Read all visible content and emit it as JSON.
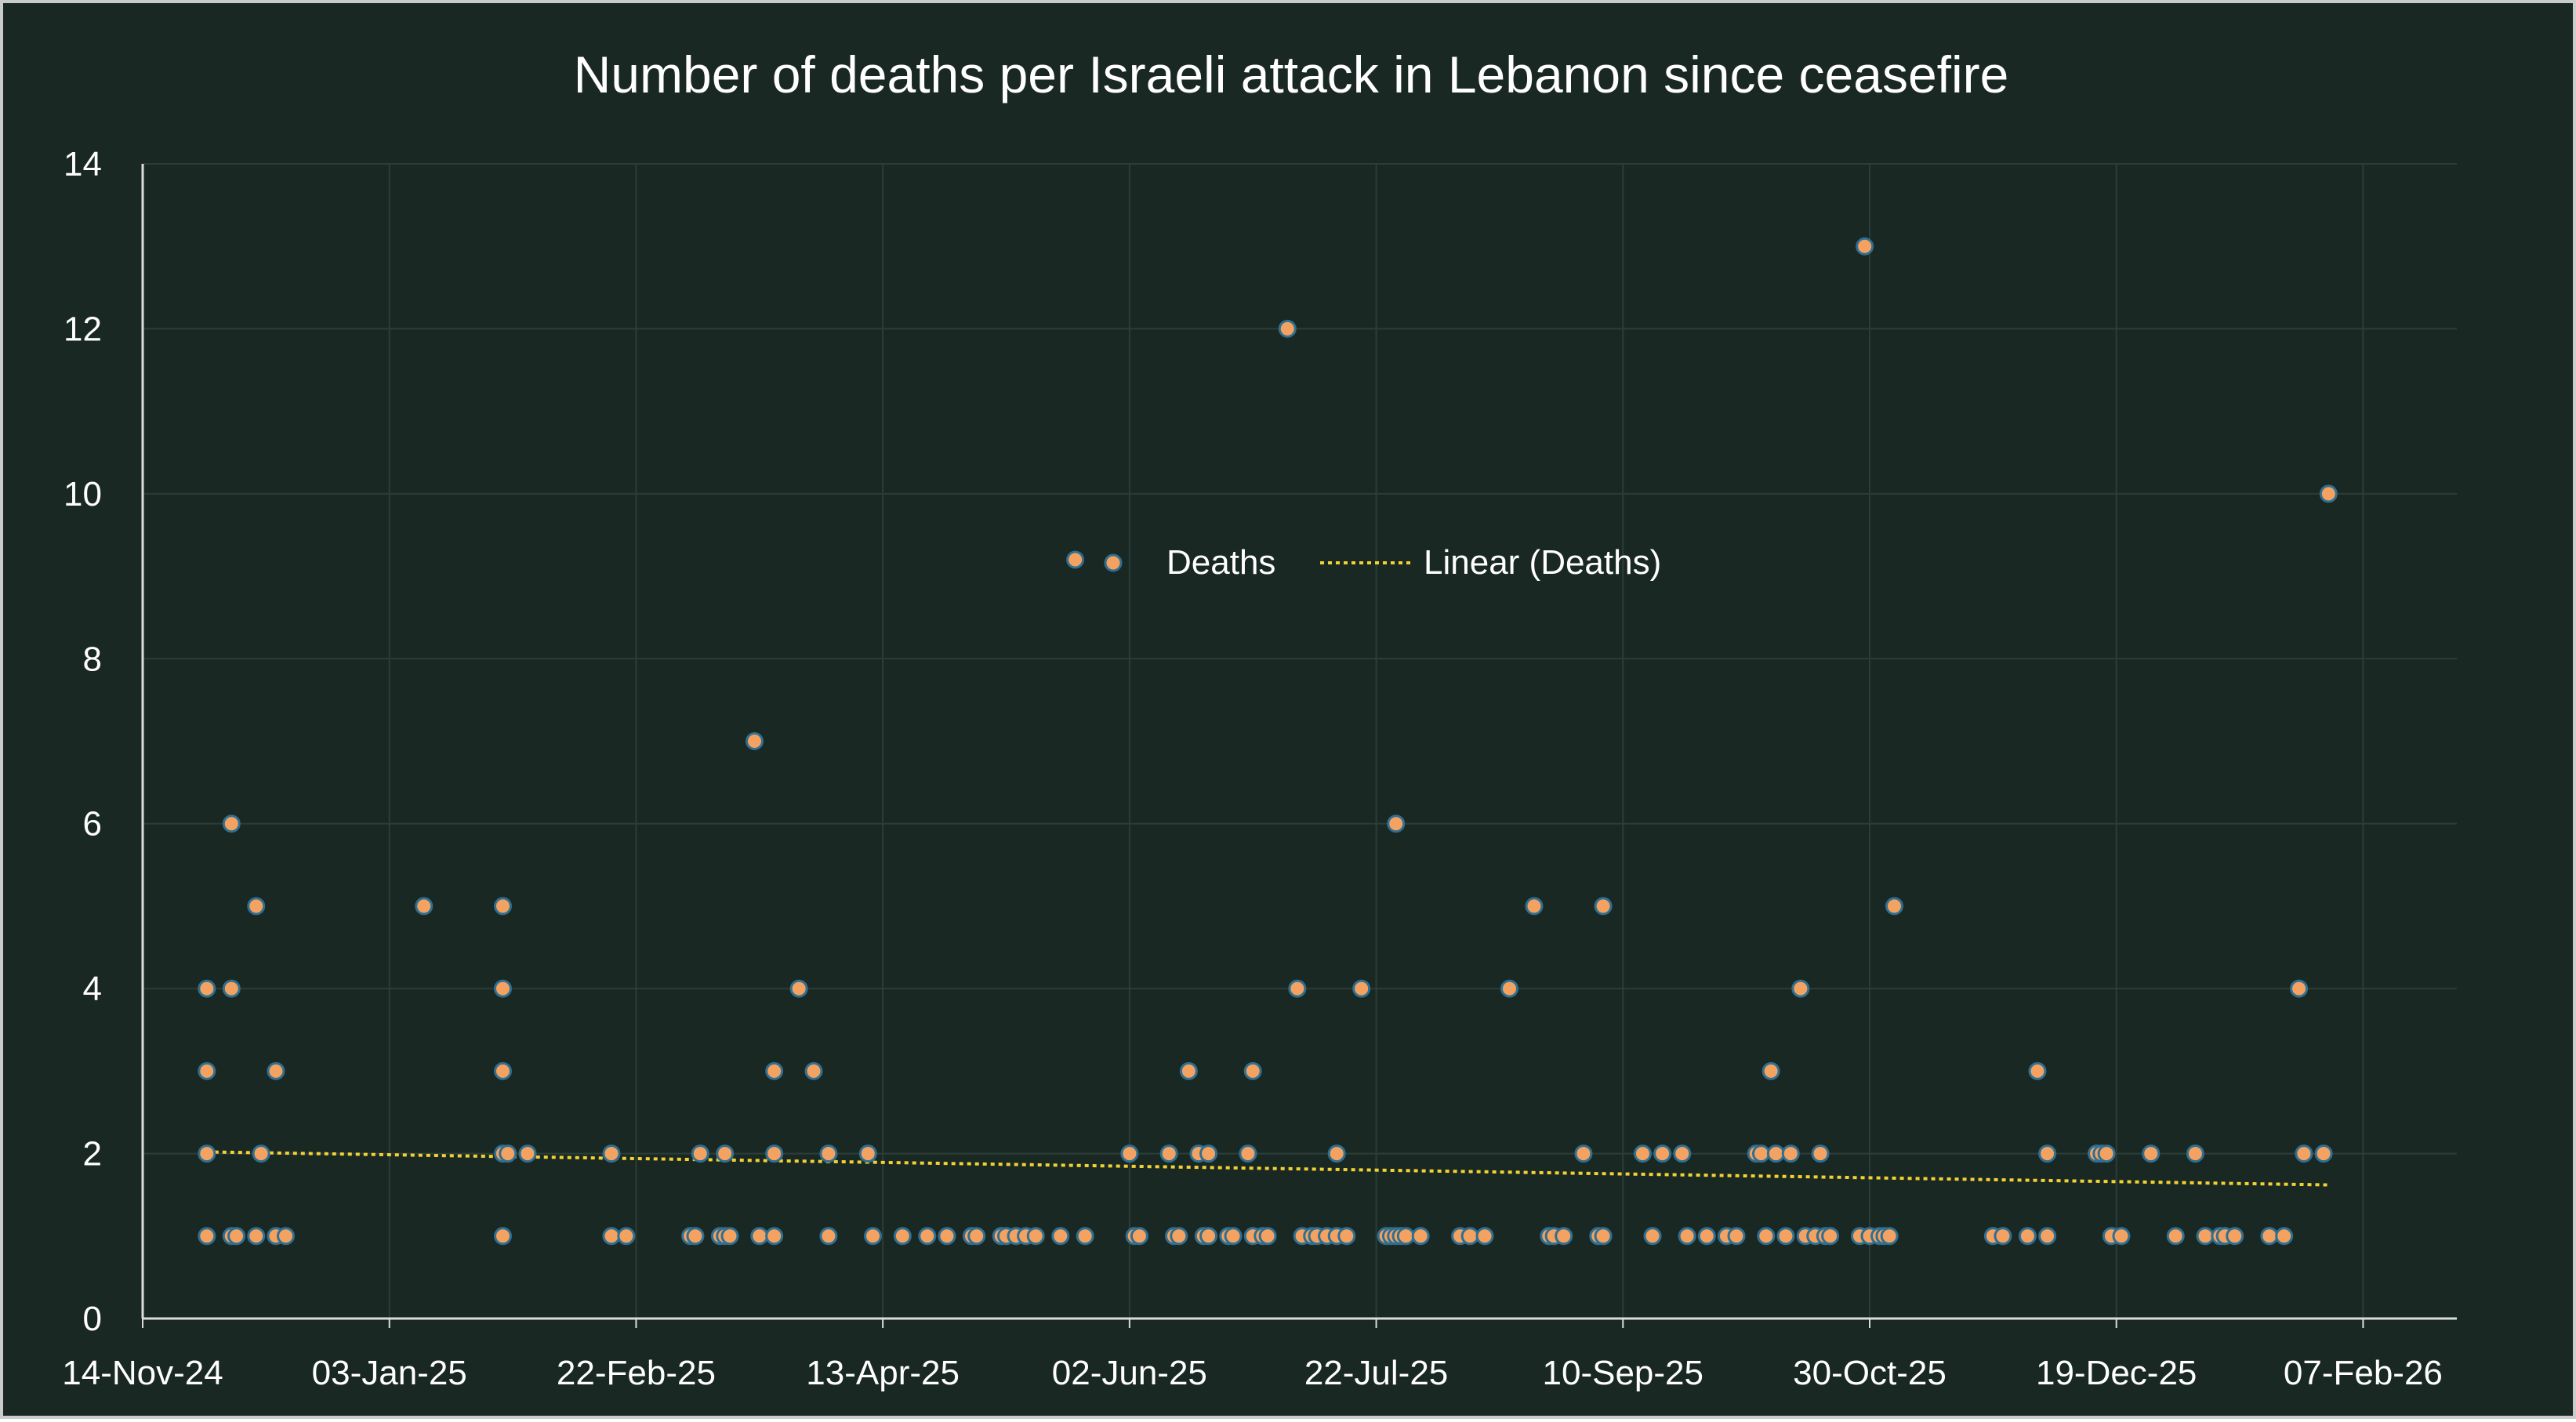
{
  "colors": {
    "background": "#1a2824",
    "frame_border": "#c9cdc9",
    "gridline": "#2c3d38",
    "axis_line": "#d9ded9",
    "point_fill": "#f4a261",
    "point_outline": "#2f6f91",
    "trendline": "#f2d233",
    "text": "#ffffff"
  },
  "chart_data": {
    "type": "scatter",
    "title": "Number of deaths per Israeli attack in Lebanon since ceasefire",
    "xlabel": "",
    "ylabel": "",
    "x_axis_type": "date",
    "xlim": [
      "2024-11-14",
      "2026-02-26"
    ],
    "ylim": [
      0,
      14
    ],
    "y_ticks": [
      0,
      2,
      4,
      6,
      8,
      10,
      12,
      14
    ],
    "x_ticks": [
      {
        "date": "2024-11-14",
        "label": "14-Nov-24"
      },
      {
        "date": "2025-01-03",
        "label": "03-Jan-25"
      },
      {
        "date": "2025-02-22",
        "label": "22-Feb-25"
      },
      {
        "date": "2025-04-13",
        "label": "13-Apr-25"
      },
      {
        "date": "2025-06-02",
        "label": "02-Jun-25"
      },
      {
        "date": "2025-07-22",
        "label": "22-Jul-25"
      },
      {
        "date": "2025-09-10",
        "label": "10-Sep-25"
      },
      {
        "date": "2025-10-30",
        "label": "30-Oct-25"
      },
      {
        "date": "2025-12-19",
        "label": "19-Dec-25"
      },
      {
        "date": "2026-02-07",
        "label": "07-Feb-26"
      }
    ],
    "grid": true,
    "legend_position": "center",
    "legend": {
      "series_label": "Deaths",
      "trend_label": "Linear (Deaths)"
    },
    "series": [
      {
        "name": "Deaths",
        "points": [
          {
            "x": "2024-11-27",
            "y": 4
          },
          {
            "x": "2024-11-27",
            "y": 3
          },
          {
            "x": "2024-11-27",
            "y": 2
          },
          {
            "x": "2024-11-27",
            "y": 1
          },
          {
            "x": "2024-12-02",
            "y": 6
          },
          {
            "x": "2024-12-02",
            "y": 4
          },
          {
            "x": "2024-12-02",
            "y": 1
          },
          {
            "x": "2024-12-03",
            "y": 1
          },
          {
            "x": "2024-12-07",
            "y": 5
          },
          {
            "x": "2024-12-07",
            "y": 1
          },
          {
            "x": "2024-12-08",
            "y": 2
          },
          {
            "x": "2024-12-11",
            "y": 3
          },
          {
            "x": "2024-12-11",
            "y": 1
          },
          {
            "x": "2024-12-13",
            "y": 1
          },
          {
            "x": "2025-01-10",
            "y": 5
          },
          {
            "x": "2025-01-26",
            "y": 5
          },
          {
            "x": "2025-01-26",
            "y": 4
          },
          {
            "x": "2025-01-26",
            "y": 3
          },
          {
            "x": "2025-01-26",
            "y": 2
          },
          {
            "x": "2025-01-26",
            "y": 1
          },
          {
            "x": "2025-01-27",
            "y": 2
          },
          {
            "x": "2025-01-31",
            "y": 2
          },
          {
            "x": "2025-02-17",
            "y": 2
          },
          {
            "x": "2025-02-17",
            "y": 1
          },
          {
            "x": "2025-02-20",
            "y": 1
          },
          {
            "x": "2025-03-05",
            "y": 1
          },
          {
            "x": "2025-03-06",
            "y": 1
          },
          {
            "x": "2025-03-07",
            "y": 2
          },
          {
            "x": "2025-03-11",
            "y": 1
          },
          {
            "x": "2025-03-12",
            "y": 2
          },
          {
            "x": "2025-03-12",
            "y": 1
          },
          {
            "x": "2025-03-13",
            "y": 1
          },
          {
            "x": "2025-03-18",
            "y": 7
          },
          {
            "x": "2025-03-19",
            "y": 1
          },
          {
            "x": "2025-03-22",
            "y": 3
          },
          {
            "x": "2025-03-22",
            "y": 2
          },
          {
            "x": "2025-03-22",
            "y": 1
          },
          {
            "x": "2025-03-27",
            "y": 4
          },
          {
            "x": "2025-03-30",
            "y": 3
          },
          {
            "x": "2025-04-02",
            "y": 2
          },
          {
            "x": "2025-04-02",
            "y": 1
          },
          {
            "x": "2025-04-10",
            "y": 2
          },
          {
            "x": "2025-04-11",
            "y": 1
          },
          {
            "x": "2025-04-17",
            "y": 1
          },
          {
            "x": "2025-04-22",
            "y": 1
          },
          {
            "x": "2025-04-26",
            "y": 1
          },
          {
            "x": "2025-05-01",
            "y": 1
          },
          {
            "x": "2025-05-02",
            "y": 1
          },
          {
            "x": "2025-05-07",
            "y": 1
          },
          {
            "x": "2025-05-08",
            "y": 1
          },
          {
            "x": "2025-05-10",
            "y": 1
          },
          {
            "x": "2025-05-12",
            "y": 1
          },
          {
            "x": "2025-05-14",
            "y": 1
          },
          {
            "x": "2025-05-19",
            "y": 1
          },
          {
            "x": "2025-05-22",
            "y": 9.2
          },
          {
            "x": "2025-05-24",
            "y": 1
          },
          {
            "x": "2025-06-02",
            "y": 2
          },
          {
            "x": "2025-06-03",
            "y": 1
          },
          {
            "x": "2025-06-04",
            "y": 1
          },
          {
            "x": "2025-06-10",
            "y": 2
          },
          {
            "x": "2025-06-11",
            "y": 1
          },
          {
            "x": "2025-06-12",
            "y": 1
          },
          {
            "x": "2025-06-14",
            "y": 3
          },
          {
            "x": "2025-06-16",
            "y": 2
          },
          {
            "x": "2025-06-17",
            "y": 1
          },
          {
            "x": "2025-06-18",
            "y": 2
          },
          {
            "x": "2025-06-18",
            "y": 1
          },
          {
            "x": "2025-06-22",
            "y": 1
          },
          {
            "x": "2025-06-23",
            "y": 1
          },
          {
            "x": "2025-06-26",
            "y": 2
          },
          {
            "x": "2025-06-27",
            "y": 3
          },
          {
            "x": "2025-06-27",
            "y": 1
          },
          {
            "x": "2025-06-29",
            "y": 1
          },
          {
            "x": "2025-06-30",
            "y": 1
          },
          {
            "x": "2025-07-04",
            "y": 12
          },
          {
            "x": "2025-07-06",
            "y": 4
          },
          {
            "x": "2025-07-07",
            "y": 1
          },
          {
            "x": "2025-07-09",
            "y": 1
          },
          {
            "x": "2025-07-10",
            "y": 1
          },
          {
            "x": "2025-07-12",
            "y": 1
          },
          {
            "x": "2025-07-14",
            "y": 2
          },
          {
            "x": "2025-07-14",
            "y": 1
          },
          {
            "x": "2025-07-16",
            "y": 1
          },
          {
            "x": "2025-07-19",
            "y": 4
          },
          {
            "x": "2025-07-24",
            "y": 1
          },
          {
            "x": "2025-07-25",
            "y": 1
          },
          {
            "x": "2025-07-26",
            "y": 6
          },
          {
            "x": "2025-07-26",
            "y": 1
          },
          {
            "x": "2025-07-27",
            "y": 1
          },
          {
            "x": "2025-07-28",
            "y": 1
          },
          {
            "x": "2025-07-31",
            "y": 1
          },
          {
            "x": "2025-08-08",
            "y": 1
          },
          {
            "x": "2025-08-10",
            "y": 1
          },
          {
            "x": "2025-08-13",
            "y": 1
          },
          {
            "x": "2025-08-18",
            "y": 4
          },
          {
            "x": "2025-08-23",
            "y": 5
          },
          {
            "x": "2025-08-26",
            "y": 1
          },
          {
            "x": "2025-08-27",
            "y": 1
          },
          {
            "x": "2025-08-29",
            "y": 1
          },
          {
            "x": "2025-09-02",
            "y": 2
          },
          {
            "x": "2025-09-05",
            "y": 1
          },
          {
            "x": "2025-09-06",
            "y": 1
          },
          {
            "x": "2025-09-06",
            "y": 5
          },
          {
            "x": "2025-09-14",
            "y": 2
          },
          {
            "x": "2025-09-16",
            "y": 1
          },
          {
            "x": "2025-09-18",
            "y": 2
          },
          {
            "x": "2025-09-22",
            "y": 2
          },
          {
            "x": "2025-09-23",
            "y": 1
          },
          {
            "x": "2025-09-27",
            "y": 1
          },
          {
            "x": "2025-10-01",
            "y": 1
          },
          {
            "x": "2025-10-03",
            "y": 1
          },
          {
            "x": "2025-10-07",
            "y": 2
          },
          {
            "x": "2025-10-08",
            "y": 2
          },
          {
            "x": "2025-10-09",
            "y": 1
          },
          {
            "x": "2025-10-10",
            "y": 3
          },
          {
            "x": "2025-10-11",
            "y": 2
          },
          {
            "x": "2025-10-13",
            "y": 1
          },
          {
            "x": "2025-10-14",
            "y": 2
          },
          {
            "x": "2025-10-16",
            "y": 4
          },
          {
            "x": "2025-10-17",
            "y": 1
          },
          {
            "x": "2025-10-19",
            "y": 1
          },
          {
            "x": "2025-10-20",
            "y": 2
          },
          {
            "x": "2025-10-21",
            "y": 1
          },
          {
            "x": "2025-10-22",
            "y": 1
          },
          {
            "x": "2025-10-28",
            "y": 1
          },
          {
            "x": "2025-10-29",
            "y": 13
          },
          {
            "x": "2025-10-30",
            "y": 1
          },
          {
            "x": "2025-11-01",
            "y": 1
          },
          {
            "x": "2025-11-02",
            "y": 1
          },
          {
            "x": "2025-11-03",
            "y": 1
          },
          {
            "x": "2025-11-04",
            "y": 5
          },
          {
            "x": "2025-11-24",
            "y": 1
          },
          {
            "x": "2025-11-26",
            "y": 1
          },
          {
            "x": "2025-12-01",
            "y": 1
          },
          {
            "x": "2025-12-03",
            "y": 3
          },
          {
            "x": "2025-12-05",
            "y": 2
          },
          {
            "x": "2025-12-05",
            "y": 1
          },
          {
            "x": "2025-12-15",
            "y": 2
          },
          {
            "x": "2025-12-16",
            "y": 2
          },
          {
            "x": "2025-12-17",
            "y": 2
          },
          {
            "x": "2025-12-18",
            "y": 1
          },
          {
            "x": "2025-12-20",
            "y": 1
          },
          {
            "x": "2025-12-26",
            "y": 2
          },
          {
            "x": "2025-12-31",
            "y": 1
          },
          {
            "x": "2026-01-04",
            "y": 2
          },
          {
            "x": "2026-01-06",
            "y": 1
          },
          {
            "x": "2026-01-09",
            "y": 1
          },
          {
            "x": "2026-01-10",
            "y": 1
          },
          {
            "x": "2026-01-12",
            "y": 1
          },
          {
            "x": "2026-01-19",
            "y": 1
          },
          {
            "x": "2026-01-22",
            "y": 1
          },
          {
            "x": "2026-01-25",
            "y": 4
          },
          {
            "x": "2026-01-26",
            "y": 2
          },
          {
            "x": "2026-01-30",
            "y": 2
          },
          {
            "x": "2026-01-31",
            "y": 10
          }
        ]
      }
    ],
    "trendline": {
      "type": "linear",
      "name": "Linear (Deaths)",
      "start": {
        "x": "2024-11-27",
        "y": 2.02
      },
      "end": {
        "x": "2026-01-31",
        "y": 1.62
      }
    }
  }
}
